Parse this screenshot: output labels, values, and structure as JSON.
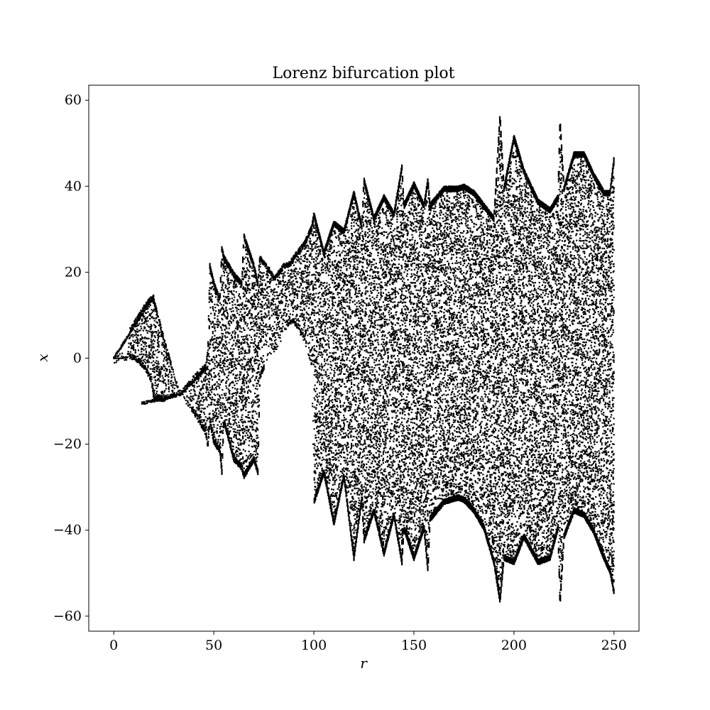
{
  "chart_data": {
    "type": "scatter",
    "title": "Lorenz bifurcation plot",
    "xlabel": "r",
    "ylabel": "x",
    "xlim": [
      -12.5,
      262.5
    ],
    "ylim": [
      -63.5,
      63.5
    ],
    "xticks": [
      0,
      50,
      100,
      150,
      200,
      250
    ],
    "yticks": [
      -60,
      -40,
      -20,
      0,
      20,
      40,
      60
    ],
    "xtick_labels": [
      "0",
      "50",
      "100",
      "150",
      "200",
      "250"
    ],
    "ytick_labels": [
      "−60",
      "−40",
      "−20",
      "0",
      "20",
      "40",
      "60"
    ],
    "grid": false,
    "legend": "none",
    "marker_color": "#000000",
    "r_range": [
      0,
      250
    ],
    "series": [
      {
        "envelope": {
          "r": [
            0,
            4,
            7,
            8,
            12,
            16,
            19,
            20,
            25,
            30,
            33,
            40,
            46,
            47,
            48,
            50,
            53,
            54,
            55,
            60,
            64,
            65,
            70,
            72,
            73,
            78,
            80,
            85,
            88,
            90,
            95,
            99,
            100,
            105,
            110,
            115,
            120,
            124,
            125,
            130,
            135,
            140,
            144,
            145,
            150,
            155,
            157,
            158,
            165,
            172,
            175,
            180,
            185,
            190,
            193,
            195,
            200,
            205,
            212,
            218,
            222,
            223,
            225,
            230,
            235,
            240,
            245,
            248,
            250
          ],
          "upper": [
            0,
            0,
            0.5,
            7,
            10,
            13,
            14.5,
            14,
            5,
            -3,
            -8,
            -4,
            -1,
            2,
            22,
            18,
            14,
            26,
            24,
            20,
            18,
            29,
            22,
            18,
            24,
            21,
            19,
            22,
            22.5,
            24,
            27,
            31,
            34,
            25,
            32,
            30,
            39,
            31,
            42,
            33,
            38,
            34,
            45,
            36,
            41,
            36,
            42,
            36,
            40,
            40,
            40.5,
            39,
            36,
            33,
            57,
            40,
            52,
            44,
            37,
            35,
            38,
            56,
            40,
            48,
            48,
            43,
            39,
            39,
            47
          ],
          "lower": [
            0,
            0,
            0,
            0,
            -1,
            -3,
            -6,
            -10,
            -10,
            -9,
            -8.5,
            -13,
            -18,
            -21,
            -15,
            -20,
            -22,
            -27,
            -15,
            -24,
            -26,
            -28,
            -24,
            -27,
            -5,
            1,
            1,
            4,
            8,
            8,
            4,
            -2,
            -34,
            -27,
            -39,
            -28,
            -47,
            -33,
            -43,
            -36,
            -46,
            -37,
            -48,
            -40,
            -47,
            -40,
            -50,
            -38,
            -34,
            -33,
            -33.5,
            -36,
            -40,
            -48,
            -57,
            -47,
            -48,
            -42,
            -48,
            -47,
            -40,
            -58,
            -42,
            -36,
            -37,
            -41,
            -47,
            -50,
            -55
          ]
        },
        "branch_lines": [
          {
            "r_start": 0,
            "r_end": 20,
            "x_start": 0,
            "x_end": 14.5
          },
          {
            "r_start": 14,
            "r_end": 33,
            "x_start": -10.5,
            "x_end": -8.5
          },
          {
            "r_start": 33,
            "r_end": 47,
            "x_start": -8.5,
            "x_end": -2
          }
        ],
        "voids": [
          {
            "r": [
              75,
              80,
              85,
              88,
              92,
              97,
              100
            ],
            "upper": [
              3,
              2,
              6,
              8,
              7,
              3,
              -2
            ],
            "lower": [
              -40,
              -40,
              -40,
              -40,
              -40,
              -40,
              -40
            ]
          }
        ]
      }
    ]
  }
}
